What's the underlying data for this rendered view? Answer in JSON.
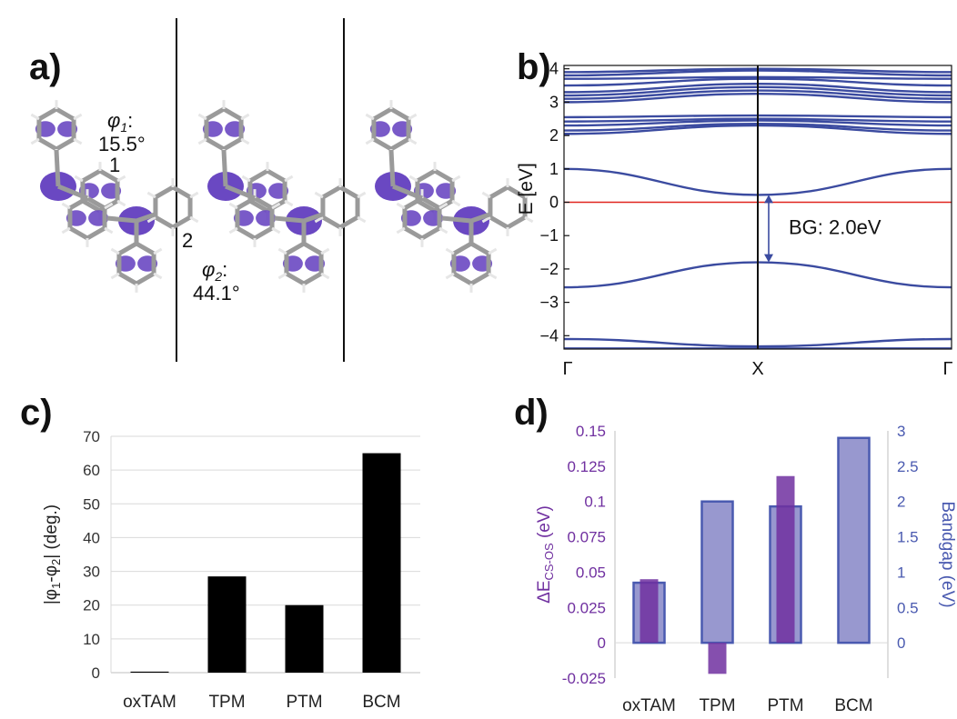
{
  "chart_data": [
    {
      "panel": "a)",
      "type": "other",
      "annotations": {
        "phi1_symbol": "φ",
        "phi1_sub": "1",
        "phi1_suffix": ":",
        "phi1_value": "15.5°",
        "phi2_symbol": "φ",
        "phi2_sub": "2",
        "phi2_suffix": ":",
        "phi2_value": "44.1°",
        "bond1": "1",
        "bond2": "2"
      },
      "colors": {
        "orbital": "#6a48c2",
        "carbon": "#9a9a9a",
        "hydrogen": "#e6e6e6"
      }
    },
    {
      "panel": "b)",
      "type": "line",
      "ylabel": "E [eV]",
      "ylim": [
        -4.4,
        4.1
      ],
      "yticks": [
        4,
        3,
        2,
        1,
        0,
        -1,
        -2,
        -3,
        -4
      ],
      "xticks": [
        "Γ",
        "X",
        "Γ"
      ],
      "fermi_level": 0,
      "bandgap_label": "BG: 2.0eV",
      "bandgap_range": [
        -1.8,
        0.22
      ],
      "colors": {
        "bands": "#3b4ba0",
        "fermi": "#e0241f",
        "gap_arrow": "#3b4ba0"
      },
      "series": [
        {
          "x": [
            0,
            0.5,
            1
          ],
          "values": [
            1.0,
            0.22,
            1.0
          ]
        },
        {
          "x": [
            0,
            0.5,
            1
          ],
          "values": [
            -2.55,
            -1.8,
            -2.55
          ]
        },
        {
          "x": [
            0,
            0.5,
            1
          ],
          "values": [
            -4.1,
            -4.32,
            -4.1
          ]
        },
        {
          "x": [
            0,
            0.5,
            1
          ],
          "values": [
            -4.38,
            -4.38,
            -4.38
          ]
        },
        {
          "x": [
            0,
            0.5,
            1
          ],
          "values": [
            2.05,
            2.3,
            2.05
          ]
        },
        {
          "x": [
            0,
            0.5,
            1
          ],
          "values": [
            2.15,
            2.35,
            2.15
          ]
        },
        {
          "x": [
            0,
            0.5,
            1
          ],
          "values": [
            2.3,
            2.45,
            2.3
          ]
        },
        {
          "x": [
            0,
            0.5,
            1
          ],
          "values": [
            2.42,
            2.5,
            2.42
          ]
        },
        {
          "x": [
            0,
            0.5,
            1
          ],
          "values": [
            2.55,
            2.6,
            2.55
          ]
        },
        {
          "x": [
            0,
            0.5,
            1
          ],
          "values": [
            3.0,
            3.25,
            3.0
          ]
        },
        {
          "x": [
            0,
            0.5,
            1
          ],
          "values": [
            3.1,
            3.35,
            3.1
          ]
        },
        {
          "x": [
            0,
            0.5,
            1
          ],
          "values": [
            3.2,
            3.45,
            3.2
          ]
        },
        {
          "x": [
            0,
            0.5,
            1
          ],
          "values": [
            3.3,
            3.55,
            3.3
          ]
        },
        {
          "x": [
            0,
            0.5,
            1
          ],
          "values": [
            3.5,
            3.7,
            3.5
          ]
        },
        {
          "x": [
            0,
            0.5,
            1
          ],
          "values": [
            3.7,
            3.75,
            3.7
          ]
        },
        {
          "x": [
            0,
            0.5,
            1
          ],
          "values": [
            3.8,
            3.95,
            3.8
          ]
        },
        {
          "x": [
            0,
            0.5,
            1
          ],
          "values": [
            3.9,
            4.0,
            3.9
          ]
        }
      ]
    },
    {
      "panel": "c)",
      "type": "bar",
      "ylabel_parts": [
        "|φ",
        "1",
        "-φ",
        "2",
        "| (deg.)"
      ],
      "categories": [
        "oxTAM",
        "TPM",
        "PTM",
        "BCM"
      ],
      "values": [
        0.3,
        28.5,
        20,
        65
      ],
      "ylim": [
        0,
        70
      ],
      "yticks": [
        0,
        10,
        20,
        30,
        40,
        50,
        60,
        70
      ],
      "colors": {
        "bars": "#000000"
      }
    },
    {
      "panel": "d)",
      "type": "bar",
      "ylabel_left_main": "ΔE",
      "ylabel_left_sub": "CS-OS",
      "ylabel_left_unit": " (eV)",
      "ylabel_right": "Bandgap (eV)",
      "categories": [
        "oxTAM",
        "TPM",
        "PTM",
        "BCM"
      ],
      "left_ylim": [
        -0.025,
        0.15
      ],
      "left_yticks": [
        "0.15",
        "0.125",
        "0.1",
        "0.075",
        "0.05",
        "0.025",
        "0",
        "-0.025"
      ],
      "right_ylim": [
        -0.5,
        3
      ],
      "right_yticks": [
        "3",
        "2.5",
        "2",
        "1.5",
        "1",
        "0.5",
        "0"
      ],
      "series": [
        {
          "axis": "left",
          "values": [
            0.045,
            -0.022,
            0.118,
            0
          ]
        },
        {
          "axis": "right",
          "values": [
            0.85,
            2.0,
            1.93,
            2.9
          ]
        }
      ],
      "colors": {
        "left": "#7030a0",
        "right_fill": "#9898cf",
        "right_edge": "#4a5ab0"
      }
    }
  ]
}
